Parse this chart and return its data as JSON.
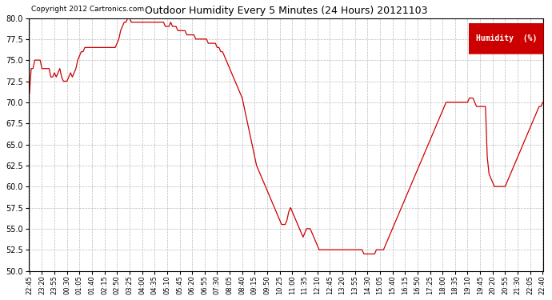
{
  "title": "Outdoor Humidity Every 5 Minutes (24 Hours) 20121103",
  "copyright": "Copyright 2012 Cartronics.com",
  "legend_label": "Humidity  (%)",
  "legend_bg": "#cc0000",
  "legend_text_color": "#ffffff",
  "line_color": "#cc0000",
  "bg_color": "#ffffff",
  "grid_color": "#aaaaaa",
  "ylim": [
    50.0,
    80.0
  ],
  "yticks": [
    50.0,
    52.5,
    55.0,
    57.5,
    60.0,
    62.5,
    65.0,
    67.5,
    70.0,
    72.5,
    75.0,
    77.5,
    80.0
  ],
  "tick_step": 7,
  "humidity_values": [
    71.0,
    74.0,
    74.0,
    75.0,
    75.0,
    75.0,
    75.0,
    74.0,
    74.0,
    74.0,
    74.0,
    74.0,
    73.0,
    73.0,
    73.5,
    73.0,
    73.5,
    74.0,
    73.0,
    72.5,
    72.5,
    72.5,
    73.0,
    73.5,
    73.0,
    73.5,
    74.0,
    75.0,
    75.5,
    76.0,
    76.0,
    76.5,
    76.5,
    76.5,
    76.5,
    76.5,
    76.5,
    76.5,
    76.5,
    76.5,
    76.5,
    76.5,
    76.5,
    76.5,
    76.5,
    76.5,
    76.5,
    76.5,
    76.5,
    77.0,
    77.5,
    78.5,
    79.0,
    79.5,
    79.5,
    80.0,
    80.0,
    79.5,
    79.5,
    79.5,
    79.5,
    79.5,
    79.5,
    79.5,
    79.5,
    79.5,
    79.5,
    79.5,
    79.5,
    79.5,
    79.5,
    79.5,
    79.5,
    79.5,
    79.5,
    79.5,
    79.0,
    79.0,
    79.0,
    79.5,
    79.0,
    79.0,
    79.0,
    78.5,
    78.5,
    78.5,
    78.5,
    78.5,
    78.0,
    78.0,
    78.0,
    78.0,
    78.0,
    77.5,
    77.5,
    77.5,
    77.5,
    77.5,
    77.5,
    77.5,
    77.0,
    77.0,
    77.0,
    77.0,
    77.0,
    76.5,
    76.5,
    76.0,
    76.0,
    75.5,
    75.0,
    74.5,
    74.0,
    73.5,
    73.0,
    72.5,
    72.0,
    71.5,
    71.0,
    70.5,
    69.5,
    68.5,
    67.5,
    66.5,
    65.5,
    64.5,
    63.5,
    62.5,
    62.0,
    61.5,
    61.0,
    60.5,
    60.0,
    59.5,
    59.0,
    58.5,
    58.0,
    57.5,
    57.0,
    56.5,
    56.0,
    55.5,
    55.5,
    55.5,
    56.0,
    57.0,
    57.5,
    57.0,
    56.5,
    56.0,
    55.5,
    55.0,
    54.5,
    54.0,
    54.5,
    55.0,
    55.0,
    55.0,
    54.5,
    54.0,
    53.5,
    53.0,
    52.5,
    52.5,
    52.5,
    52.5,
    52.5,
    52.5,
    52.5,
    52.5,
    52.5,
    52.5,
    52.5,
    52.5,
    52.5,
    52.5,
    52.5,
    52.5,
    52.5,
    52.5,
    52.5,
    52.5,
    52.5,
    52.5,
    52.5,
    52.5,
    52.5,
    52.0,
    52.0,
    52.0,
    52.0,
    52.0,
    52.0,
    52.0,
    52.5,
    52.5,
    52.5,
    52.5,
    52.5,
    53.0,
    53.5,
    54.0,
    54.5,
    55.0,
    55.5,
    56.0,
    56.5,
    57.0,
    57.5,
    58.0,
    58.5,
    59.0,
    59.5,
    60.0,
    60.5,
    61.0,
    61.5,
    62.0,
    62.5,
    63.0,
    63.5,
    64.0,
    64.5,
    65.0,
    65.5,
    66.0,
    66.5,
    67.0,
    67.5,
    68.0,
    68.5,
    69.0,
    69.5,
    70.0,
    70.0,
    70.0,
    70.0,
    70.0,
    70.0,
    70.0,
    70.0,
    70.0,
    70.0,
    70.0,
    70.0,
    70.0,
    70.5,
    70.5,
    70.5,
    70.0,
    69.5,
    69.5,
    69.5,
    69.5,
    69.5,
    69.5,
    63.5,
    61.5,
    61.0,
    60.5,
    60.0,
    60.0,
    60.0,
    60.0,
    60.0,
    60.0,
    60.0,
    60.5,
    61.0,
    61.5,
    62.0,
    62.5,
    63.0,
    63.5,
    64.0,
    64.5,
    65.0,
    65.5,
    66.0,
    66.5,
    67.0,
    67.5,
    68.0,
    68.5,
    69.0,
    69.5,
    69.5,
    70.0
  ]
}
